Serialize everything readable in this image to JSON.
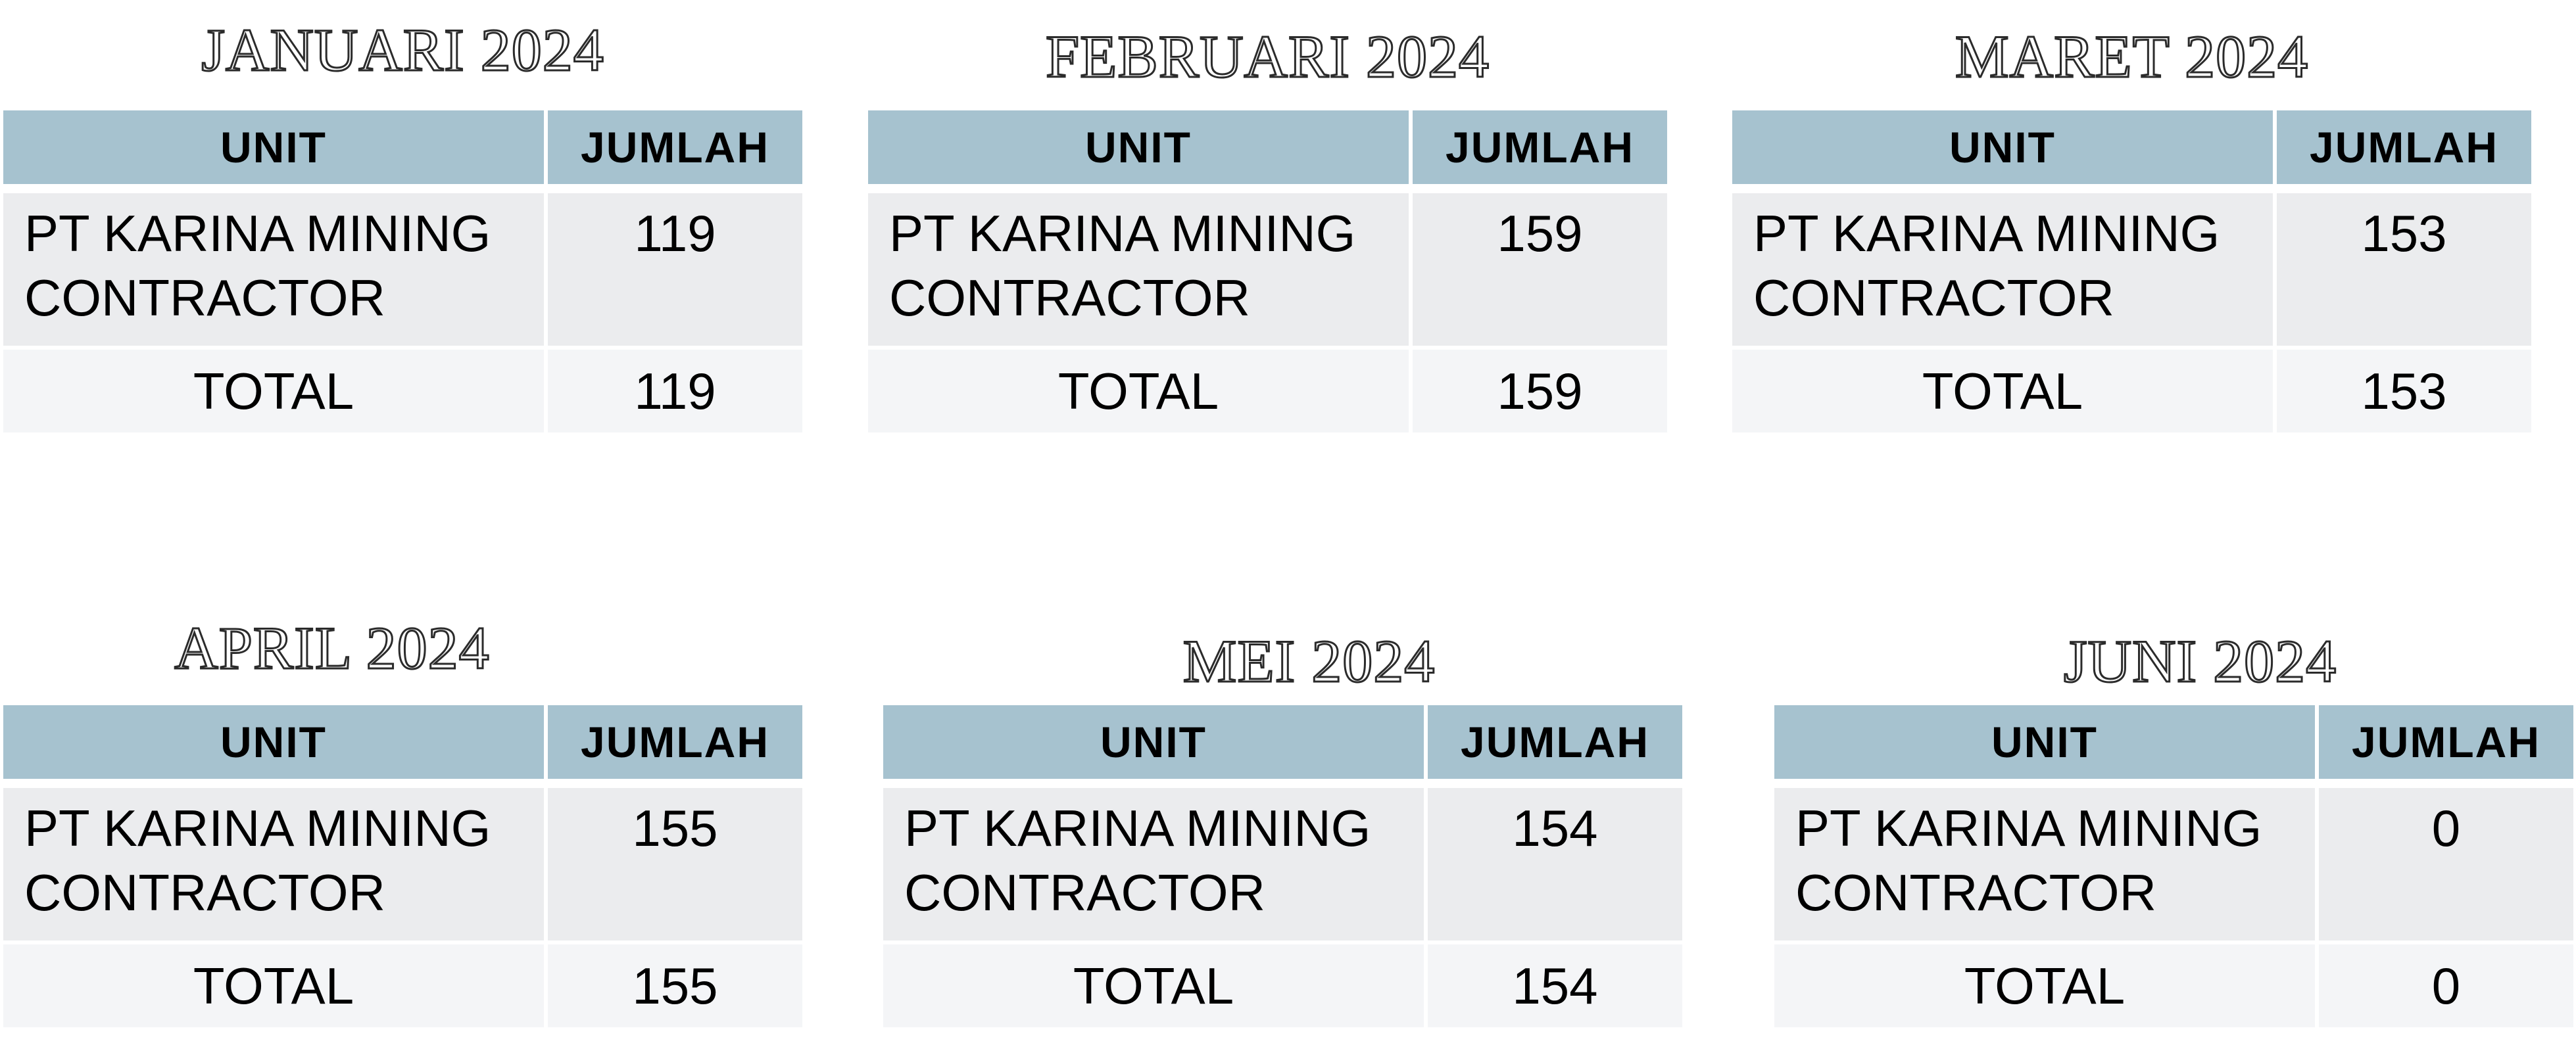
{
  "tables": [
    {
      "month": "JANUARI 2024",
      "header_unit": "UNIT",
      "header_jumlah": "JUMLAH",
      "unit_line1": "PT KARINA MINING",
      "unit_line2": "CONTRACTOR",
      "jumlah": "119",
      "total_label": "TOTAL",
      "total_value": "119"
    },
    {
      "month": "FEBRUARI 2024",
      "header_unit": "UNIT",
      "header_jumlah": "JUMLAH",
      "unit_line1": "PT KARINA MINING",
      "unit_line2": "CONTRACTOR",
      "jumlah": "159",
      "total_label": "TOTAL",
      "total_value": "159"
    },
    {
      "month": "MARET 2024",
      "header_unit": "UNIT",
      "header_jumlah": "JUMLAH",
      "unit_line1": "PT KARINA MINING",
      "unit_line2": "CONTRACTOR",
      "jumlah": "153",
      "total_label": "TOTAL",
      "total_value": "153"
    },
    {
      "month": "APRIL 2024",
      "header_unit": "UNIT",
      "header_jumlah": "JUMLAH",
      "unit_line1": "PT KARINA MINING",
      "unit_line2": "CONTRACTOR",
      "jumlah": "155",
      "total_label": "TOTAL",
      "total_value": "155"
    },
    {
      "month": "MEI 2024",
      "header_unit": "UNIT",
      "header_jumlah": "JUMLAH",
      "unit_line1": "PT KARINA MINING",
      "unit_line2": "CONTRACTOR",
      "jumlah": "154",
      "total_label": "TOTAL",
      "total_value": "154"
    },
    {
      "month": "JUNI 2024",
      "header_unit": "UNIT",
      "header_jumlah": "JUMLAH",
      "unit_line1": "PT KARINA MINING",
      "unit_line2": "CONTRACTOR",
      "jumlah": "0",
      "total_label": "TOTAL",
      "total_value": "0"
    }
  ],
  "colors": {
    "header_bg": "#a6c2cf",
    "row_bg": "#ebecee",
    "total_bg": "#f4f5f7"
  }
}
